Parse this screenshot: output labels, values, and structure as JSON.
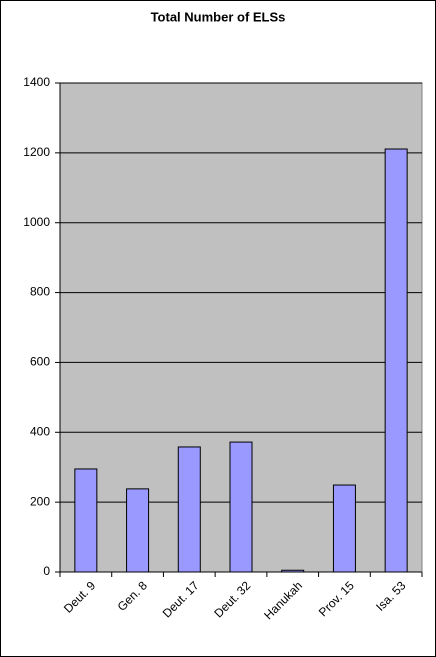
{
  "chart_data": {
    "type": "bar",
    "title": "Total Number of ELSs",
    "categories": [
      "Deut. 9",
      "Gen. 8",
      "Deut. 17",
      "Deut. 32",
      "Hanukah",
      "Prov. 15",
      "Isa. 53"
    ],
    "values": [
      295,
      238,
      358,
      372,
      5,
      249,
      1211
    ],
    "color": "#9999ff",
    "ylim": [
      0,
      1400
    ],
    "yticks": [
      0,
      200,
      400,
      600,
      800,
      1000,
      1200,
      1400
    ],
    "grid": true
  }
}
